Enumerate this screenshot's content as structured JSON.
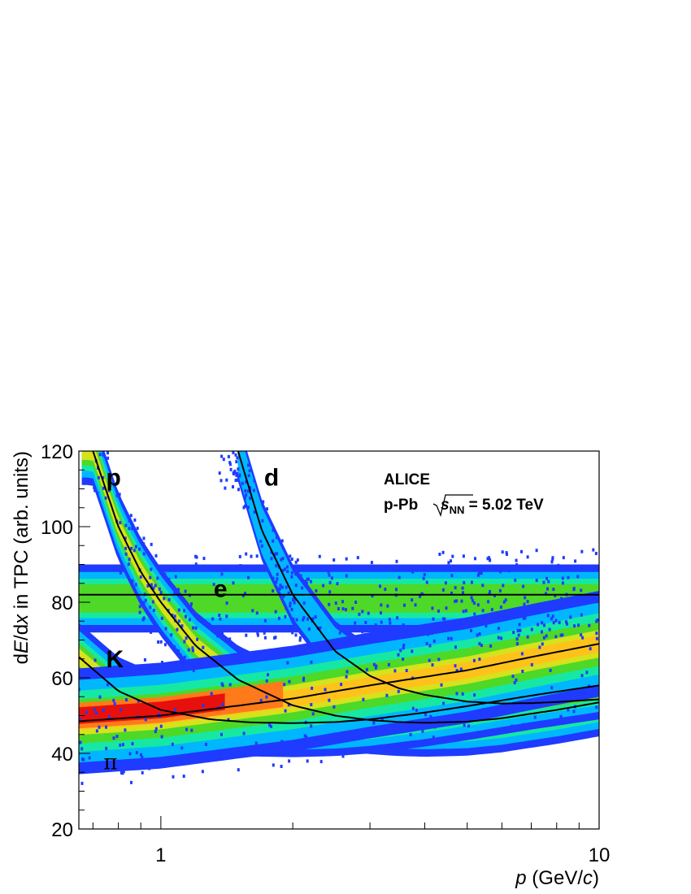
{
  "chart_data": {
    "type": "heatmap",
    "title": "",
    "xlabel_italic": "p",
    "xlabel_rest": " (GeV/",
    "xlabel_c": "c",
    "xlabel_close": ")",
    "ylabel_a": "d",
    "ylabel_b": "E",
    "ylabel_c": "/d",
    "ylabel_d": "x",
    "ylabel_e": " in TPC (arb. units)",
    "x_scale": "log",
    "xlim": [
      0.65,
      10
    ],
    "ylim": [
      20,
      120
    ],
    "x_tick_labels": [
      {
        "value": 1,
        "label": "1"
      },
      {
        "value": 10,
        "label": "10"
      }
    ],
    "y_tick_labels": [
      {
        "value": 20,
        "label": "20"
      },
      {
        "value": 40,
        "label": "40"
      },
      {
        "value": 60,
        "label": "60"
      },
      {
        "value": 80,
        "label": "80"
      },
      {
        "value": 100,
        "label": "100"
      },
      {
        "value": 120,
        "label": "120"
      }
    ],
    "experiment": "ALICE",
    "system": "p-Pb",
    "energy_s": "s",
    "energy_sub": "NN",
    "energy_value": " = 5.02 TeV",
    "species_labels": [
      {
        "key": "p",
        "text": "p",
        "x": 0.75,
        "y": 113
      },
      {
        "key": "d",
        "text": "d",
        "x": 1.72,
        "y": 113
      },
      {
        "key": "e",
        "text": "e",
        "x": 1.32,
        "y": 83.5
      },
      {
        "key": "K",
        "text": "K",
        "x": 0.75,
        "y": 65
      },
      {
        "key": "pi",
        "text": "π",
        "x": 0.74,
        "y": 38
      }
    ],
    "series": [
      {
        "key": "electron",
        "x": [
          0.65,
          10
        ],
        "y": [
          82,
          82
        ]
      },
      {
        "key": "pion",
        "x": [
          0.65,
          1.0,
          2.0,
          3.0,
          5.0,
          7.0,
          10.0
        ],
        "y": [
          48.5,
          50.0,
          54.5,
          58.0,
          62.0,
          65.5,
          69.0
        ]
      },
      {
        "key": "kaon",
        "x": [
          0.65,
          0.8,
          1.0,
          1.3,
          1.6,
          2.0,
          2.5,
          3.0,
          4.0,
          5.0,
          7.0,
          10.0
        ],
        "y": [
          65.5,
          56.5,
          51.5,
          49.0,
          48.2,
          48.0,
          48.3,
          49.0,
          50.8,
          52.5,
          55.3,
          58.0
        ]
      },
      {
        "key": "proton",
        "x": [
          0.7,
          0.8,
          0.9,
          1.0,
          1.2,
          1.5,
          2.0,
          2.5,
          3.0,
          3.5,
          4.0,
          5.0,
          6.0,
          7.0,
          8.0,
          10.0
        ],
        "y": [
          120,
          100,
          88,
          80,
          68.5,
          59.5,
          52.7,
          50.0,
          48.8,
          48.3,
          48.1,
          48.4,
          49.3,
          50.5,
          51.5,
          53.5
        ]
      },
      {
        "key": "deuteron",
        "x": [
          1.5,
          1.7,
          2.0,
          2.5,
          3.0,
          3.5,
          4.0,
          5.0,
          6.0,
          7.0,
          8.0,
          10.0
        ],
        "y": [
          120,
          99,
          82,
          67,
          60.5,
          57.2,
          55.5,
          53.7,
          53.2,
          53.3,
          53.6,
          54.3
        ]
      }
    ]
  }
}
